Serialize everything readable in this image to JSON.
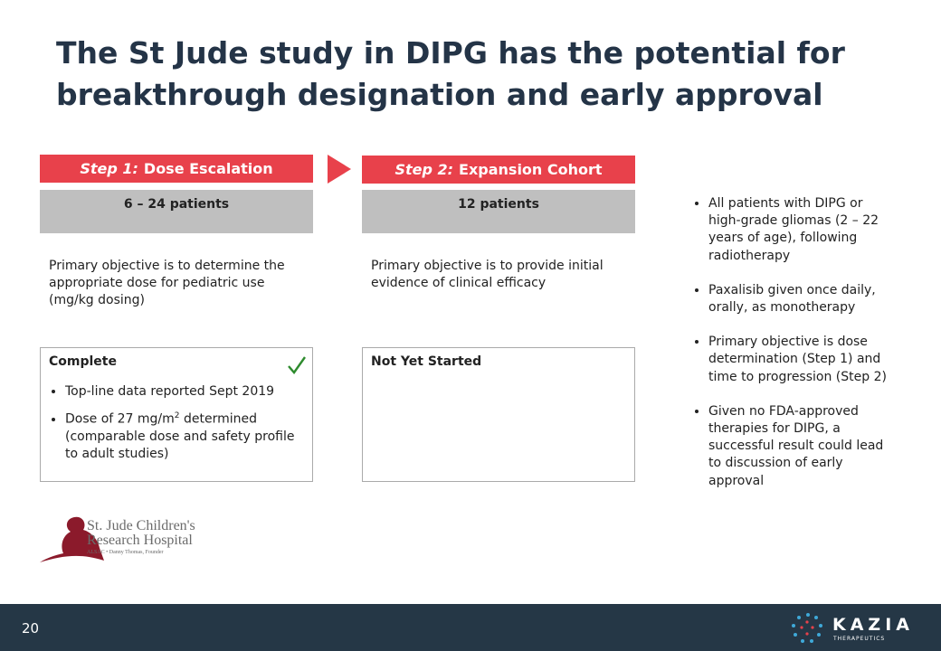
{
  "header": {
    "title_lines": [
      "The St Jude study in DIPG has the potential for",
      "breakthrough designation and early approval"
    ]
  },
  "steps": [
    {
      "label": "Step 1:",
      "name": "Dose Escalation",
      "patients": "6 – 24 patients",
      "objective": "Primary objective is to determine the appropriate dose for pediatric use (mg/kg dosing)",
      "status": "Complete",
      "bullets": [
        [
          "Top-line data reported Sept 2019"
        ],
        [
          "Dose of 27 mg/m",
          "2",
          " determined (comparable dose and safety profile to adult studies)"
        ]
      ]
    },
    {
      "label": "Step 2:",
      "name": "Expansion Cohort",
      "patients": "12 patients",
      "objective": "Primary objective is to provide initial evidence of clinical efficacy",
      "status": "Not Yet Started",
      "bullets": []
    }
  ],
  "notes": [
    "All patients with DIPG or high-grade gliomas (2 – 22 years of age), following radiotherapy",
    "Paxalisib given once daily, orally, as monotherapy",
    "Primary objective is dose determination (Step 1) and time to progression (Step 2)",
    "Given no FDA-approved therapies for DIPG, a successful result could lead to discussion of early approval"
  ],
  "logo": {
    "line1": "St. Jude Children's",
    "line2": "Research Hospital",
    "tagline": "ALSAC • Danny Thomas, Founder"
  },
  "footer": {
    "page": "20",
    "brand": "KAZIA",
    "brand_sub": "THERAPEUTICS"
  }
}
